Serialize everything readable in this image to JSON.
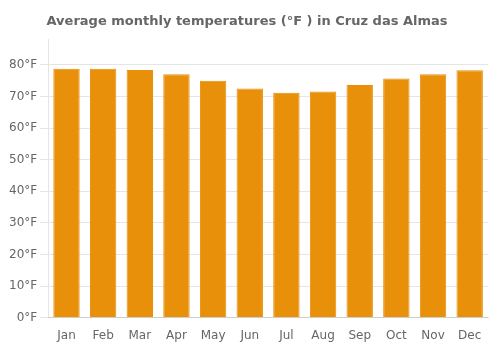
{
  "chart_data": {
    "type": "bar",
    "title": "Average monthly temperatures (°F ) in Cruz das Almas",
    "categories": [
      "Jan",
      "Feb",
      "Mar",
      "Apr",
      "May",
      "Jun",
      "Jul",
      "Aug",
      "Sep",
      "Oct",
      "Nov",
      "Dec"
    ],
    "values": [
      78.8,
      78.8,
      78.4,
      77.0,
      75.0,
      72.5,
      71.2,
      71.6,
      73.6,
      75.7,
      77.0,
      78.3
    ],
    "color": "#E8900A",
    "ylim": [
      0,
      88
    ],
    "yticks": [
      {
        "value": 0,
        "label": "0°F"
      },
      {
        "value": 10,
        "label": "10°F"
      },
      {
        "value": 20,
        "label": "20°F"
      },
      {
        "value": 30,
        "label": "30°F"
      },
      {
        "value": 40,
        "label": "40°F"
      },
      {
        "value": 50,
        "label": "50°F"
      },
      {
        "value": 60,
        "label": "60°F"
      },
      {
        "value": 70,
        "label": "70°F"
      },
      {
        "value": 80,
        "label": "80°F"
      }
    ],
    "grid": true
  }
}
